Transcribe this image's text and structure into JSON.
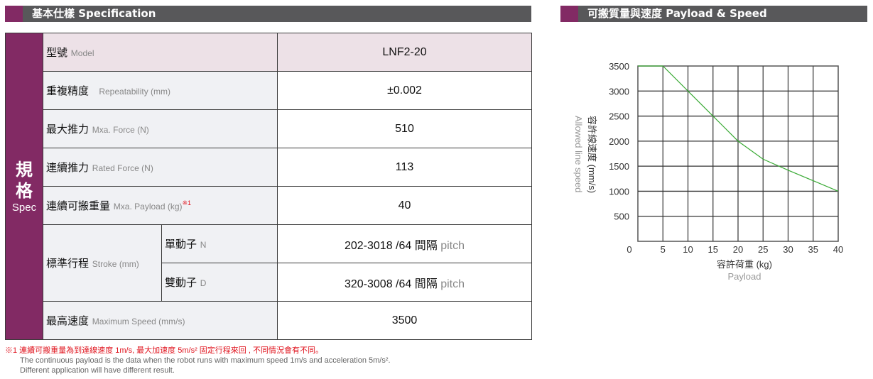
{
  "spec": {
    "title": "基本仕樣 Specification",
    "side_zh1": "規",
    "side_zh2": "格",
    "side_en": "Spec",
    "rows": [
      {
        "zh": "型號",
        "en": "Model",
        "value": "LNF2-20"
      },
      {
        "zh": "重複精度",
        "en": "Repeatability (mm)",
        "value": "±0.002"
      },
      {
        "zh": "最大推力",
        "en": "Mxa. Force (N)",
        "value": "510"
      },
      {
        "zh": "連續推力",
        "en": "Rated Force (N)",
        "value": "113"
      },
      {
        "zh": "連續可搬重量",
        "en": "Mxa. Payload (kg)",
        "sup": "※1",
        "value": "40"
      }
    ],
    "stroke": {
      "zh": "標準行程",
      "en": "Stroke (mm)",
      "sub": [
        {
          "zh": "單動子",
          "en": "N",
          "value": "202-3018 /64 間隔",
          "unit": "pitch"
        },
        {
          "zh": "雙動子",
          "en": "D",
          "value": "320-3008 /64 間隔",
          "unit": "pitch"
        }
      ]
    },
    "speed": {
      "zh": "最高速度",
      "en": "Maximum Speed (mm/s)",
      "value": "3500"
    }
  },
  "notes": {
    "zh": "※1 連續可搬重量為到達線速度 1m/s, 最大加速度 5m/s² 固定行程來回 , 不同情況會有不同。",
    "en1": "The continuous payload is the data when the robot runs with maximum speed 1m/s and acceleration 5m/s².",
    "en2": "Different application will have different result."
  },
  "chart_title": "可搬質量與速度  Payload & Speed",
  "chart_data": {
    "type": "line",
    "x": [
      0,
      5,
      10,
      15,
      20,
      25,
      30,
      35,
      40
    ],
    "y": [
      3500,
      3500,
      3000,
      2500,
      2000,
      1640,
      1420,
      1210,
      1000
    ],
    "xlabel": "容許荷重 (kg)",
    "xlabel_en": "Payload",
    "ylabel": "容許線速度 (mm/s)",
    "ylabel_en": "Allowed line speed",
    "xlim": [
      0,
      40
    ],
    "ylim": [
      0,
      3500
    ],
    "xticks": [
      0,
      5,
      10,
      15,
      20,
      25,
      30,
      35,
      40
    ],
    "yticks": [
      500,
      1000,
      1500,
      2000,
      2500,
      3000,
      3500
    ],
    "grid": true,
    "line_color": "#3aaa35"
  },
  "colors": {
    "accent": "#822a64",
    "bar": "#58585a"
  }
}
